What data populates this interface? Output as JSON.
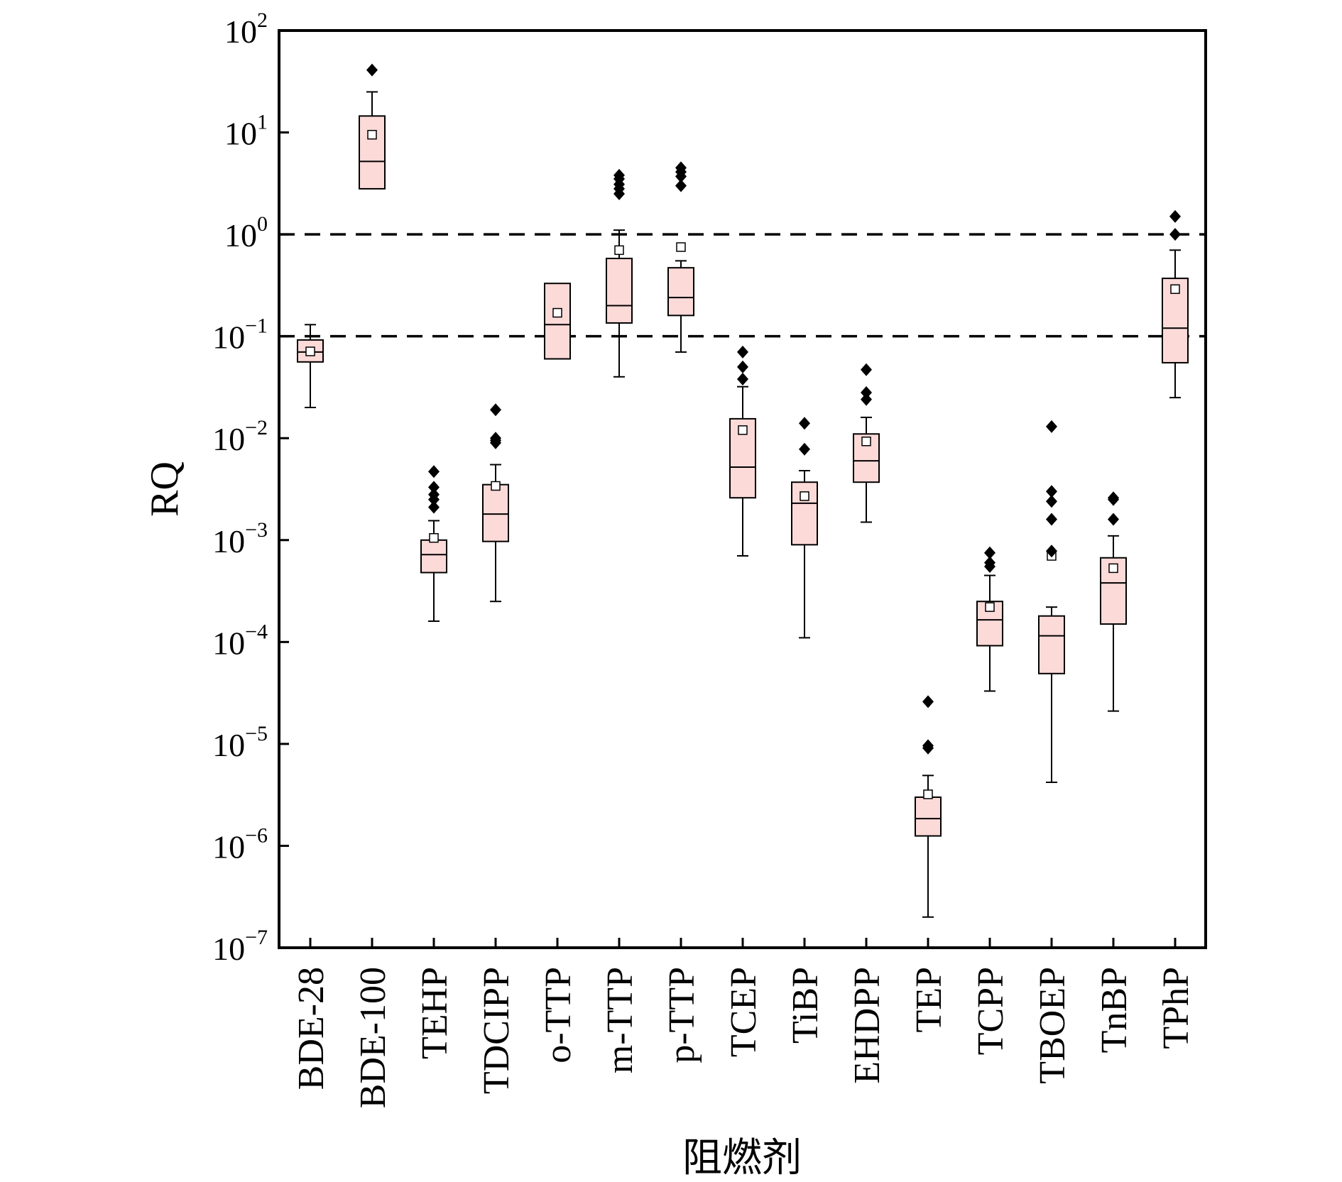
{
  "chart_data": {
    "type": "box",
    "xlabel": "阻燃剂",
    "ylabel": "RQ",
    "yscale": "log",
    "ylim": [
      1e-07,
      100
    ],
    "yticks": [
      {
        "value": 1e-07,
        "base": "10",
        "exp": "−7"
      },
      {
        "value": 1e-06,
        "base": "10",
        "exp": "−6"
      },
      {
        "value": 1e-05,
        "base": "10",
        "exp": "−5"
      },
      {
        "value": 0.0001,
        "base": "10",
        "exp": "−4"
      },
      {
        "value": 0.001,
        "base": "10",
        "exp": "−3"
      },
      {
        "value": 0.01,
        "base": "10",
        "exp": "−2"
      },
      {
        "value": 0.1,
        "base": "10",
        "exp": "−1"
      },
      {
        "value": 1,
        "base": "10",
        "exp": "0"
      },
      {
        "value": 10,
        "base": "10",
        "exp": "1"
      },
      {
        "value": 100,
        "base": "10",
        "exp": "2"
      }
    ],
    "reference_lines": [
      1,
      0.1
    ],
    "grid": false,
    "colors": {
      "box_fill": "#fcdad8",
      "box_stroke": "#000000",
      "outlier": "#000000",
      "mean_marker_fill": "#ffffff"
    },
    "categories": [
      "BDE-28",
      "BDE-100",
      "TEHP",
      "TDCIPP",
      "o-TTP",
      "m-TTP",
      "p-TTP",
      "TCEP",
      "TiBP",
      "EHDPP",
      "TEP",
      "TCPP",
      "TBOEP",
      "TnBP",
      "TPhP"
    ],
    "boxes": [
      {
        "q1": 0.056,
        "median": 0.07,
        "q3": 0.092,
        "whisker_low": 0.02,
        "whisker_high": 0.13,
        "mean": 0.071,
        "outliers": []
      },
      {
        "q1": 2.8,
        "median": 5.2,
        "q3": 14.5,
        "whisker_low": 2.8,
        "whisker_high": 25,
        "mean": 9.5,
        "outliers": [
          41
        ]
      },
      {
        "q1": 0.00048,
        "median": 0.00072,
        "q3": 0.001,
        "whisker_low": 0.00016,
        "whisker_high": 0.00155,
        "mean": 0.00105,
        "outliers": [
          0.0021,
          0.0025,
          0.0028,
          0.0033,
          0.0047
        ]
      },
      {
        "q1": 0.00097,
        "median": 0.0018,
        "q3": 0.0035,
        "whisker_low": 0.00025,
        "whisker_high": 0.0055,
        "mean": 0.0034,
        "outliers": [
          0.009,
          0.0095,
          0.01,
          0.019
        ]
      },
      {
        "q1": 0.06,
        "median": 0.13,
        "q3": 0.33,
        "whisker_low": 0.06,
        "whisker_high": 0.33,
        "mean": 0.17,
        "outliers": []
      },
      {
        "q1": 0.135,
        "median": 0.2,
        "q3": 0.58,
        "whisker_low": 0.04,
        "whisker_high": 1.1,
        "mean": 0.7,
        "outliers": [
          2.5,
          2.8,
          3.1,
          3.5,
          3.8
        ]
      },
      {
        "q1": 0.16,
        "median": 0.24,
        "q3": 0.47,
        "whisker_low": 0.07,
        "whisker_high": 0.55,
        "mean": 0.75,
        "outliers": [
          3.0,
          3.7,
          4.1,
          4.5
        ]
      },
      {
        "q1": 0.0026,
        "median": 0.0052,
        "q3": 0.0155,
        "whisker_low": 0.0007,
        "whisker_high": 0.032,
        "mean": 0.012,
        "outliers": [
          0.038,
          0.05,
          0.07
        ]
      },
      {
        "q1": 0.0009,
        "median": 0.0023,
        "q3": 0.0037,
        "whisker_low": 0.00011,
        "whisker_high": 0.0048,
        "mean": 0.0027,
        "outliers": [
          0.0078,
          0.014
        ]
      },
      {
        "q1": 0.0037,
        "median": 0.006,
        "q3": 0.011,
        "whisker_low": 0.0015,
        "whisker_high": 0.016,
        "mean": 0.0093,
        "outliers": [
          0.024,
          0.028,
          0.047
        ]
      },
      {
        "q1": 1.25e-06,
        "median": 1.85e-06,
        "q3": 3e-06,
        "whisker_low": 2e-07,
        "whisker_high": 4.9e-06,
        "mean": 3.2e-06,
        "outliers": [
          9.1e-06,
          9.6e-06,
          2.6e-05
        ]
      },
      {
        "q1": 9.2e-05,
        "median": 0.000165,
        "q3": 0.00025,
        "whisker_low": 3.3e-05,
        "whisker_high": 0.00045,
        "mean": 0.00022,
        "outliers": [
          0.00055,
          0.0006,
          0.00075
        ]
      },
      {
        "q1": 4.9e-05,
        "median": 0.000115,
        "q3": 0.00018,
        "whisker_low": 4.2e-06,
        "whisker_high": 0.00022,
        "mean": 0.0007,
        "outliers": [
          0.00078,
          0.0016,
          0.0024,
          0.003,
          0.013
        ]
      },
      {
        "q1": 0.00015,
        "median": 0.00038,
        "q3": 0.00067,
        "whisker_low": 2.1e-05,
        "whisker_high": 0.0011,
        "mean": 0.00053,
        "outliers": [
          0.0016,
          0.0025,
          0.0026
        ]
      },
      {
        "q1": 0.055,
        "median": 0.12,
        "q3": 0.37,
        "whisker_low": 0.025,
        "whisker_high": 0.7,
        "mean": 0.29,
        "outliers": [
          1.0,
          1.5
        ]
      }
    ]
  }
}
